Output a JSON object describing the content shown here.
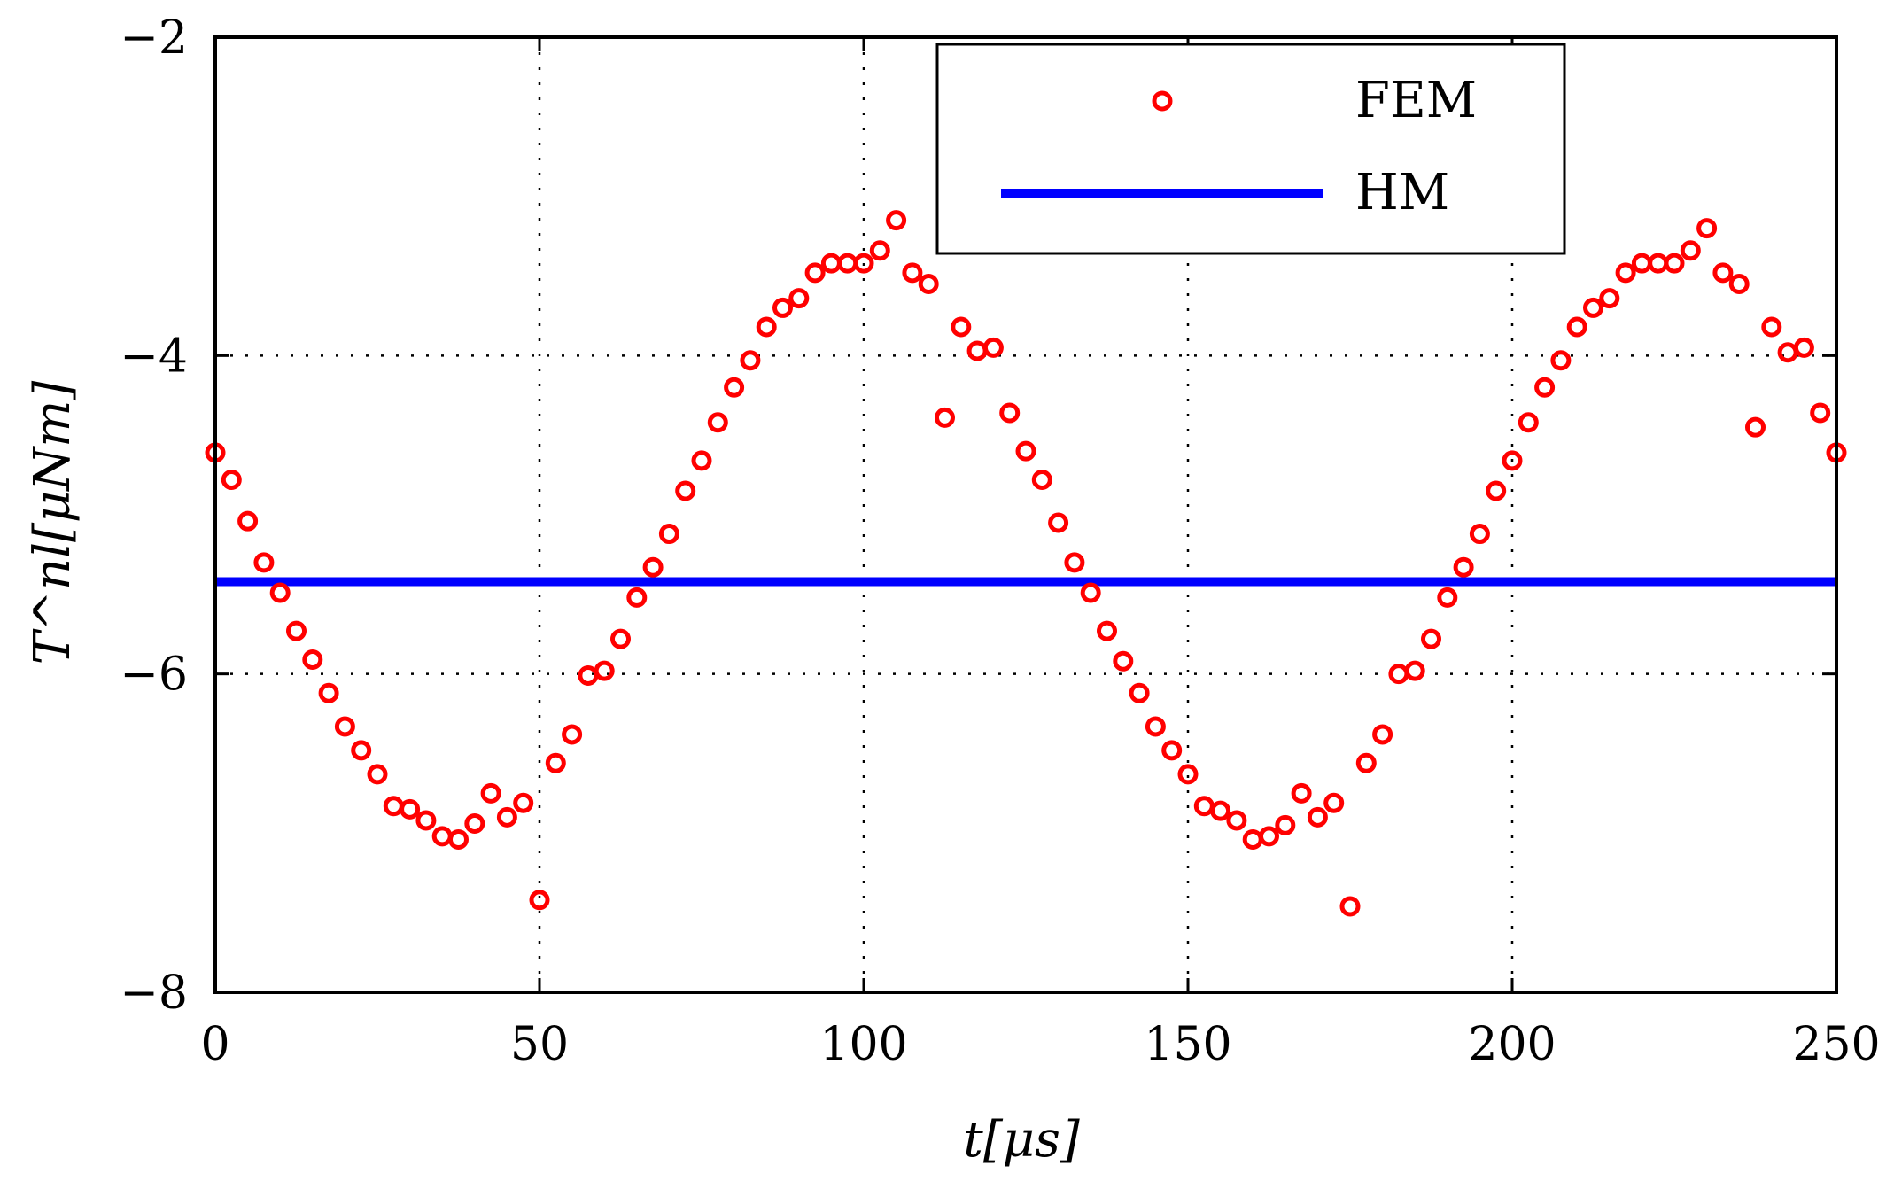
{
  "chart_data": {
    "type": "scatter",
    "title": "",
    "xlabel": "t[μs]",
    "ylabel": "T^nl[μNm]",
    "xlim": [
      0,
      250
    ],
    "ylim": [
      -8,
      -2
    ],
    "xticks": [
      0,
      50,
      100,
      150,
      200,
      250
    ],
    "xtick_labels": [
      "0",
      "50",
      "100",
      "150",
      "200",
      "250"
    ],
    "yticks": [
      -8,
      -6,
      -4,
      -2
    ],
    "ytick_labels": [
      "−8",
      "−6",
      "−4",
      "−2"
    ],
    "grid": true,
    "legend_position": "top-right",
    "series": [
      {
        "name": "FEM",
        "style": "markers",
        "color": "#ff0000",
        "x": [
          0,
          2.5,
          5,
          7.5,
          10,
          12.5,
          15,
          17.5,
          20,
          22.5,
          25,
          27.5,
          30,
          32.5,
          35,
          37.5,
          40,
          42.5,
          45,
          47.5,
          50,
          52.5,
          55,
          57.5,
          60,
          62.5,
          65,
          67.5,
          70,
          72.5,
          75,
          77.5,
          80,
          82.5,
          85,
          87.5,
          90,
          92.5,
          95,
          97.5,
          100,
          102.5,
          105,
          107.5,
          110,
          112.5,
          115,
          117.5,
          120,
          122.5,
          125,
          127.5,
          130,
          132.5,
          135,
          137.5,
          140,
          142.5,
          145,
          147.5,
          150,
          152.5,
          155,
          157.5,
          160,
          162.5,
          165,
          167.5,
          170,
          172.5,
          175,
          177.5,
          180,
          182.5,
          185,
          187.5,
          190,
          192.5,
          195,
          197.5,
          200,
          202.5,
          205,
          207.5,
          210,
          212.5,
          215,
          217.5,
          220,
          222.5,
          225,
          227.5,
          230,
          232.5,
          235,
          237.5,
          240,
          242.5,
          245,
          247.5,
          250
        ],
        "y": [
          -4.61,
          -4.78,
          -5.04,
          -5.3,
          -5.49,
          -5.73,
          -5.91,
          -6.12,
          -6.33,
          -6.48,
          -6.63,
          -6.83,
          -6.85,
          -6.92,
          -7.02,
          -7.04,
          -6.94,
          -6.75,
          -6.9,
          -6.81,
          -7.42,
          -6.56,
          -6.38,
          -6.01,
          -5.98,
          -5.78,
          -5.52,
          -5.33,
          -5.12,
          -4.85,
          -4.66,
          -4.42,
          -4.2,
          -4.03,
          -3.82,
          -3.7,
          -3.64,
          -3.48,
          -3.42,
          -3.42,
          -3.42,
          -3.34,
          -3.15,
          -3.48,
          -3.55,
          -4.39,
          -3.82,
          -3.97,
          -3.95,
          -4.36,
          -4.6,
          -4.78,
          -5.05,
          -5.3,
          -5.49,
          -5.73,
          -5.92,
          -6.12,
          -6.33,
          -6.48,
          -6.63,
          -6.83,
          -6.86,
          -6.92,
          -7.04,
          -7.02,
          -6.95,
          -6.75,
          -6.9,
          -6.81,
          -7.46,
          -6.56,
          -6.38,
          -6.0,
          -5.98,
          -5.78,
          -5.52,
          -5.33,
          -5.12,
          -4.85,
          -4.66,
          -4.42,
          -4.2,
          -4.03,
          -3.82,
          -3.7,
          -3.64,
          -3.48,
          -3.42,
          -3.42,
          -3.42,
          -3.34,
          -3.2,
          -3.48,
          -3.55,
          -4.45,
          -3.82,
          -3.98,
          -3.95,
          -4.36,
          -4.61
        ]
      },
      {
        "name": "HM",
        "style": "line",
        "color": "#0000ff",
        "x": [
          0,
          250
        ],
        "y": [
          -5.42,
          -5.42
        ]
      }
    ]
  }
}
